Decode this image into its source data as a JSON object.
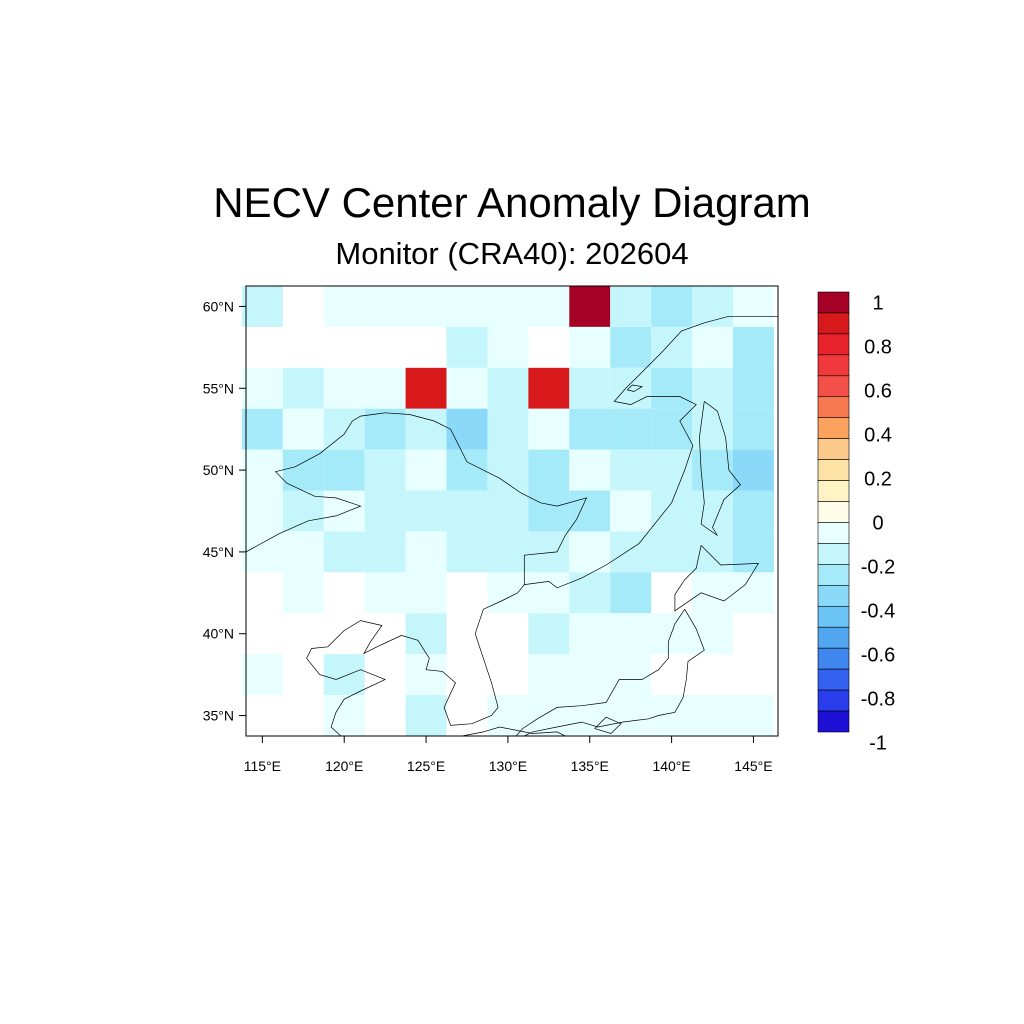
{
  "title": "NECV Center Anomaly Diagram",
  "subtitle": "Monitor (CRA40): 202604",
  "chart_data": {
    "type": "heatmap",
    "title": "NECV Center Anomaly Diagram",
    "subtitle": "Monitor (CRA40): 202604",
    "x_range": [
      114,
      146.5
    ],
    "y_range": [
      33.75,
      61.25
    ],
    "grid_step": 2.5,
    "lon_centers": [
      115,
      117.5,
      120,
      122.5,
      125,
      127.5,
      130,
      132.5,
      135,
      137.5,
      140,
      142.5,
      145
    ],
    "lat_centers": [
      60,
      57.5,
      55,
      52.5,
      50,
      47.5,
      45,
      42.5,
      40,
      37.5,
      35
    ],
    "x_ticks": [
      115,
      120,
      125,
      130,
      135,
      140,
      145
    ],
    "x_tick_labels": [
      "115°E",
      "120°E",
      "125°E",
      "130°E",
      "135°E",
      "140°E",
      "145°E"
    ],
    "y_ticks": [
      60,
      55,
      50,
      45,
      40,
      35
    ],
    "y_tick_labels": [
      "60°N",
      "55°N",
      "50°N",
      "45°N",
      "40°N",
      "35°N"
    ],
    "values": [
      [
        -0.2,
        null,
        -0.05,
        -0.05,
        -0.05,
        -0.05,
        -0.05,
        -0.05,
        0.95,
        -0.2,
        -0.3,
        -0.2,
        -0.05
      ],
      [
        null,
        null,
        null,
        null,
        null,
        -0.2,
        -0.05,
        null,
        -0.05,
        -0.3,
        -0.2,
        -0.05,
        -0.3
      ],
      [
        -0.05,
        -0.2,
        -0.05,
        -0.05,
        0.85,
        -0.05,
        -0.2,
        0.85,
        -0.2,
        -0.2,
        -0.3,
        -0.2,
        -0.3
      ],
      [
        -0.3,
        -0.05,
        -0.2,
        -0.3,
        -0.2,
        -0.4,
        -0.2,
        -0.05,
        -0.3,
        -0.3,
        -0.3,
        -0.2,
        -0.3
      ],
      [
        -0.05,
        -0.3,
        -0.3,
        -0.2,
        -0.05,
        -0.3,
        -0.2,
        -0.3,
        -0.05,
        -0.2,
        -0.2,
        -0.3,
        -0.4
      ],
      [
        -0.05,
        -0.2,
        -0.05,
        -0.2,
        -0.2,
        -0.2,
        -0.2,
        -0.3,
        -0.3,
        -0.05,
        -0.2,
        -0.2,
        -0.3
      ],
      [
        -0.05,
        -0.05,
        -0.2,
        -0.2,
        -0.05,
        -0.2,
        -0.2,
        -0.2,
        -0.05,
        -0.2,
        -0.2,
        -0.2,
        -0.3
      ],
      [
        null,
        -0.05,
        null,
        -0.05,
        -0.05,
        null,
        -0.05,
        -0.05,
        -0.2,
        -0.3,
        null,
        -0.05,
        -0.05
      ],
      [
        null,
        null,
        null,
        null,
        -0.2,
        null,
        null,
        -0.2,
        -0.05,
        -0.05,
        -0.05,
        -0.05,
        null
      ],
      [
        -0.05,
        null,
        -0.2,
        null,
        -0.05,
        null,
        null,
        -0.05,
        -0.05,
        -0.05,
        null,
        null,
        null
      ],
      [
        null,
        null,
        -0.05,
        null,
        -0.2,
        null,
        -0.05,
        -0.05,
        -0.05,
        -0.05,
        -0.05,
        -0.05,
        -0.05
      ]
    ],
    "colorbar": {
      "labels": [
        "1",
        "0.8",
        "0.6",
        "0.4",
        "0.2",
        "0",
        "-0.2",
        "-0.4",
        "-0.6",
        "-0.8",
        "-1"
      ],
      "label_values": [
        1,
        0.8,
        0.6,
        0.4,
        0.2,
        0,
        -0.2,
        -0.4,
        -0.6,
        -0.8,
        -1
      ],
      "colors": [
        "#a50026",
        "#d7191c",
        "#e8232e",
        "#f0383d",
        "#f4504a",
        "#f7794f",
        "#fba25e",
        "#fdc98a",
        "#fde2a6",
        "#fff3c4",
        "#fffde7",
        "#e7ffff",
        "#c5f6fb",
        "#a5eaf9",
        "#8ad9f9",
        "#6cc3f6",
        "#50a7f0",
        "#3f86ee",
        "#3461ef",
        "#2a3ded",
        "#1d0fd6"
      ]
    },
    "coastlines": [
      [
        [
          114,
          45.0
        ],
        [
          116,
          46.1
        ],
        [
          117.8,
          46.9
        ],
        [
          119.5,
          47.2
        ],
        [
          121,
          47.8
        ],
        [
          119.5,
          48.3
        ],
        [
          118.2,
          48.4
        ],
        [
          116.5,
          49.2
        ],
        [
          115.8,
          49.9
        ],
        [
          117,
          50.2
        ],
        [
          118.5,
          51
        ],
        [
          120,
          52.2
        ],
        [
          120.5,
          53
        ],
        [
          121,
          53.3
        ],
        [
          122.5,
          53.5
        ],
        [
          124,
          53.4
        ],
        [
          125.5,
          53
        ],
        [
          126.5,
          52.5
        ],
        [
          127.5,
          50.5
        ],
        [
          129.5,
          49.5
        ],
        [
          130.8,
          48.6
        ],
        [
          132,
          48
        ],
        [
          133,
          47.8
        ],
        [
          134.8,
          48.3
        ],
        [
          134.2,
          47
        ],
        [
          133.5,
          46
        ],
        [
          133,
          45
        ],
        [
          131,
          44.8
        ],
        [
          131,
          43
        ],
        [
          130.6,
          42.5
        ]
      ],
      [
        [
          130.6,
          42.5
        ],
        [
          129.6,
          42
        ],
        [
          128.5,
          41.5
        ],
        [
          128,
          40
        ],
        [
          129,
          37
        ],
        [
          129.4,
          35.5
        ],
        [
          129,
          35
        ],
        [
          127.8,
          34.5
        ],
        [
          126.5,
          34.4
        ],
        [
          126.1,
          35.5
        ],
        [
          126.8,
          37
        ],
        [
          126,
          37.7
        ],
        [
          125,
          37.8
        ],
        [
          125.2,
          38.5
        ],
        [
          124.5,
          39.6
        ],
        [
          123.5,
          39.9
        ],
        [
          122,
          39.2
        ],
        [
          121.2,
          38.8
        ],
        [
          121.6,
          39.5
        ],
        [
          122.3,
          40.5
        ],
        [
          121,
          40.8
        ],
        [
          120,
          40.2
        ],
        [
          119,
          39.2
        ],
        [
          118,
          39.1
        ],
        [
          117.7,
          38.5
        ],
        [
          118.5,
          37.5
        ],
        [
          119.5,
          37.2
        ],
        [
          121,
          37.8
        ],
        [
          122.5,
          37.2
        ],
        [
          121,
          36.5
        ],
        [
          120,
          36
        ],
        [
          119.5,
          35.2
        ],
        [
          119.2,
          34.3
        ],
        [
          119.8,
          33.75
        ]
      ],
      [
        [
          131,
          43
        ],
        [
          132.5,
          43.2
        ],
        [
          133,
          42.8
        ],
        [
          134.5,
          43.4
        ],
        [
          136,
          44.2
        ],
        [
          138,
          45.5
        ],
        [
          140,
          48
        ],
        [
          140.8,
          50
        ],
        [
          141.3,
          51.5
        ],
        [
          140.5,
          53
        ],
        [
          141.5,
          54
        ],
        [
          140.5,
          54.5
        ],
        [
          138.5,
          54.5
        ],
        [
          137.5,
          54
        ],
        [
          136.5,
          54.2
        ],
        [
          137.2,
          55
        ],
        [
          138,
          55.8
        ],
        [
          139.5,
          57.3
        ],
        [
          140.6,
          58.5
        ],
        [
          142,
          59
        ],
        [
          143.5,
          59.4
        ],
        [
          145,
          59.4
        ],
        [
          146.5,
          59.4
        ]
      ],
      [
        [
          142,
          54.2
        ],
        [
          142.8,
          53.6
        ],
        [
          143.3,
          52
        ],
        [
          143.5,
          50
        ],
        [
          144.2,
          49.1
        ],
        [
          143.2,
          48.2
        ],
        [
          142.5,
          46.5
        ],
        [
          142.8,
          46
        ],
        [
          141.8,
          46.7
        ],
        [
          142,
          48
        ],
        [
          141.8,
          50
        ],
        [
          141.7,
          52
        ],
        [
          141.9,
          53.5
        ],
        [
          142,
          54.2
        ]
      ],
      [
        [
          141.8,
          45.4
        ],
        [
          143,
          44.2
        ],
        [
          145.3,
          44.3
        ],
        [
          144.5,
          43
        ],
        [
          143.2,
          42
        ],
        [
          141.8,
          42.5
        ],
        [
          140.2,
          41.4
        ],
        [
          140.2,
          42.4
        ],
        [
          140.8,
          43.3
        ],
        [
          141.5,
          44
        ],
        [
          141.8,
          45.4
        ]
      ],
      [
        [
          140.8,
          41.5
        ],
        [
          141.5,
          40.3
        ],
        [
          142,
          39
        ],
        [
          141,
          38.3
        ],
        [
          140.9,
          37.2
        ],
        [
          140.7,
          36.1
        ],
        [
          140.2,
          35.2
        ],
        [
          139.2,
          35
        ],
        [
          138.6,
          34.8
        ],
        [
          137,
          34.6
        ],
        [
          135.5,
          34.3
        ],
        [
          134.5,
          34.6
        ],
        [
          133,
          34.3
        ],
        [
          131.5,
          34
        ],
        [
          131,
          33.75
        ]
      ],
      [
        [
          140.8,
          41.5
        ],
        [
          140.2,
          40.6
        ],
        [
          139.8,
          39.5
        ],
        [
          139.8,
          38.5
        ],
        [
          139.2,
          37.8
        ],
        [
          138.2,
          37.2
        ],
        [
          136.8,
          37.2
        ],
        [
          136,
          35.8
        ],
        [
          134.5,
          35.6
        ],
        [
          133,
          35.5
        ],
        [
          131.8,
          34.8
        ],
        [
          130.9,
          34.2
        ],
        [
          130.5,
          33.75
        ]
      ],
      [
        [
          127.2,
          33.75
        ],
        [
          128.5,
          34
        ],
        [
          129.5,
          34.3
        ],
        [
          131,
          34
        ],
        [
          131.5,
          33.9
        ],
        [
          133,
          34
        ],
        [
          133.5,
          33.75
        ]
      ],
      [
        [
          137.7,
          54.8
        ],
        [
          138.2,
          55.1
        ],
        [
          137.6,
          55.2
        ],
        [
          137.3,
          54.9
        ],
        [
          137.7,
          54.8
        ]
      ],
      [
        [
          135.3,
          34.2
        ],
        [
          136,
          34.9
        ],
        [
          136.9,
          34.5
        ],
        [
          136.3,
          33.9
        ],
        [
          135.3,
          34.2
        ]
      ]
    ]
  }
}
